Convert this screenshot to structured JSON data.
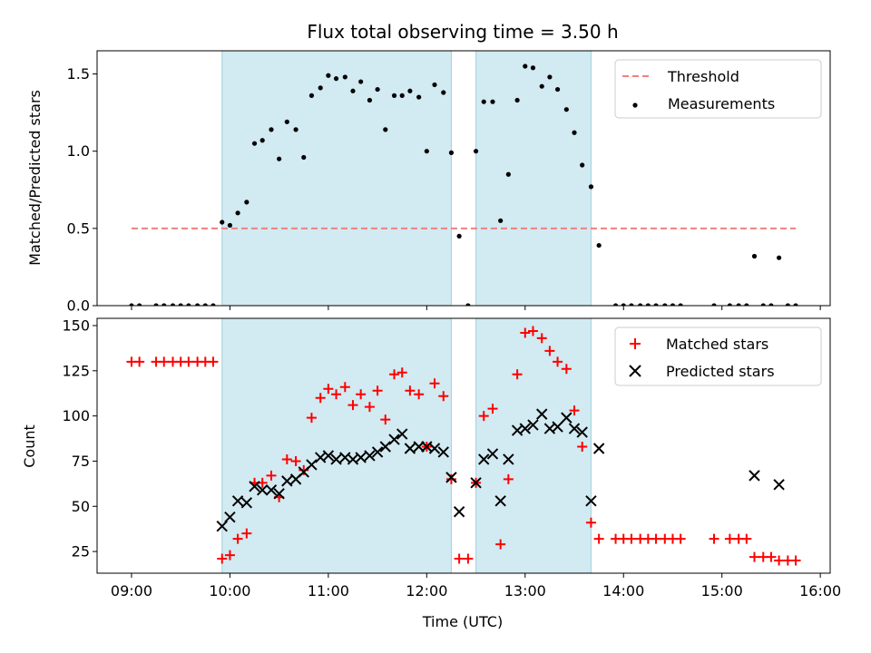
{
  "title": "Flux total observing time = 3.50 h",
  "colors": {
    "shade": "#add8e6",
    "threshold": "#f08080",
    "measurement": "#000000",
    "matched": "#ff0000",
    "predicted": "#000000"
  },
  "chart_data": [
    {
      "type": "scatter",
      "ylabel": "Matched/Predicted stars",
      "ylim": [
        0,
        1.65
      ],
      "yticks": [
        0,
        0.5,
        1.0,
        1.5
      ],
      "ytick_labels": [
        "0.0",
        "0.5",
        "1.0",
        "1.5"
      ],
      "xlim": [
        8.65,
        16.1
      ],
      "legend": {
        "placement": "top-right",
        "entries": [
          "Threshold",
          "Measurements"
        ]
      },
      "shaded_intervals": [
        [
          9.92,
          12.25
        ],
        [
          12.5,
          13.67
        ]
      ],
      "threshold": {
        "name": "Threshold",
        "value": 0.5,
        "x": [
          9.0,
          15.75
        ]
      },
      "series": [
        {
          "name": "Measurements",
          "x": [
            9.0,
            9.08,
            9.25,
            9.33,
            9.42,
            9.5,
            9.58,
            9.67,
            9.75,
            9.83,
            9.92,
            10.0,
            10.08,
            10.17,
            10.25,
            10.33,
            10.42,
            10.5,
            10.58,
            10.67,
            10.75,
            10.83,
            10.92,
            11.0,
            11.08,
            11.17,
            11.25,
            11.33,
            11.42,
            11.5,
            11.58,
            11.67,
            11.75,
            11.83,
            11.92,
            12.0,
            12.08,
            12.17,
            12.25,
            12.33,
            12.42,
            12.5,
            12.58,
            12.67,
            12.75,
            12.83,
            12.92,
            13.0,
            13.08,
            13.17,
            13.25,
            13.33,
            13.42,
            13.5,
            13.58,
            13.67,
            13.75,
            13.92,
            14.0,
            14.08,
            14.17,
            14.25,
            14.33,
            14.42,
            14.5,
            14.58,
            14.92,
            15.08,
            15.17,
            15.25,
            15.33,
            15.42,
            15.5,
            15.58,
            15.67,
            15.75
          ],
          "y": [
            0,
            0,
            0,
            0,
            0,
            0,
            0,
            0,
            0,
            0,
            0.54,
            0.52,
            0.6,
            0.67,
            1.05,
            1.07,
            1.14,
            0.95,
            1.19,
            1.14,
            0.96,
            1.36,
            1.41,
            1.49,
            1.47,
            1.48,
            1.39,
            1.45,
            1.33,
            1.4,
            1.14,
            1.36,
            1.36,
            1.39,
            1.35,
            1.0,
            1.43,
            1.38,
            0.99,
            0.45,
            0,
            1.0,
            1.32,
            1.32,
            0.55,
            0.85,
            1.33,
            1.55,
            1.54,
            1.42,
            1.48,
            1.4,
            1.27,
            1.12,
            0.91,
            0.77,
            0.39,
            0,
            0,
            0,
            0,
            0,
            0,
            0,
            0,
            0,
            0,
            0,
            0,
            0,
            0.32,
            0,
            0,
            0.31,
            0,
            0
          ]
        }
      ]
    },
    {
      "type": "scatter",
      "xlabel": "Time (UTC)",
      "ylabel": "Count",
      "ylim": [
        13,
        154
      ],
      "yticks": [
        25,
        50,
        75,
        100,
        125,
        150
      ],
      "ytick_labels": [
        "25",
        "50",
        "75",
        "100",
        "125",
        "150"
      ],
      "xlim": [
        8.65,
        16.1
      ],
      "xticks": [
        9,
        10,
        11,
        12,
        13,
        14,
        15,
        16
      ],
      "xtick_labels": [
        "09:00",
        "10:00",
        "11:00",
        "12:00",
        "13:00",
        "14:00",
        "15:00",
        "16:00"
      ],
      "legend": {
        "placement": "top-right",
        "entries": [
          "Matched stars",
          "Predicted stars"
        ]
      },
      "shaded_intervals": [
        [
          9.92,
          12.25
        ],
        [
          12.5,
          13.67
        ]
      ],
      "series": [
        {
          "name": "Matched stars",
          "marker": "plus",
          "x": [
            9.0,
            9.08,
            9.25,
            9.33,
            9.42,
            9.5,
            9.58,
            9.67,
            9.75,
            9.83,
            9.92,
            10.0,
            10.08,
            10.17,
            10.25,
            10.33,
            10.42,
            10.5,
            10.58,
            10.67,
            10.75,
            10.83,
            10.92,
            11.0,
            11.08,
            11.17,
            11.25,
            11.33,
            11.42,
            11.5,
            11.58,
            11.67,
            11.75,
            11.83,
            11.92,
            12.0,
            12.08,
            12.17,
            12.25,
            12.33,
            12.42,
            12.5,
            12.58,
            12.67,
            12.75,
            12.83,
            12.92,
            13.0,
            13.08,
            13.17,
            13.25,
            13.33,
            13.42,
            13.5,
            13.58,
            13.67,
            13.75,
            13.92,
            14.0,
            14.08,
            14.17,
            14.25,
            14.33,
            14.42,
            14.5,
            14.58,
            14.92,
            15.08,
            15.17,
            15.25,
            15.33,
            15.42,
            15.5,
            15.58,
            15.67,
            15.75
          ],
          "y": [
            130,
            130,
            130,
            130,
            130,
            130,
            130,
            130,
            130,
            130,
            21,
            23,
            32,
            35,
            63,
            63,
            67,
            55,
            76,
            75,
            70,
            99,
            110,
            115,
            112,
            116,
            106,
            112,
            105,
            114,
            98,
            123,
            124,
            114,
            112,
            83,
            118,
            111,
            65,
            21,
            21,
            63,
            100,
            104,
            29,
            65,
            123,
            146,
            147,
            143,
            136,
            130,
            126,
            103,
            83,
            41,
            32,
            32,
            32,
            32,
            32,
            32,
            32,
            32,
            32,
            32,
            32,
            32,
            32,
            32,
            22,
            22,
            22,
            20,
            20,
            20
          ]
        },
        {
          "name": "Predicted stars",
          "marker": "x",
          "x": [
            9.92,
            10.0,
            10.08,
            10.17,
            10.25,
            10.33,
            10.42,
            10.5,
            10.58,
            10.67,
            10.75,
            10.83,
            10.92,
            11.0,
            11.08,
            11.17,
            11.25,
            11.33,
            11.42,
            11.5,
            11.58,
            11.67,
            11.75,
            11.83,
            11.92,
            12.0,
            12.08,
            12.17,
            12.25,
            12.33,
            12.5,
            12.58,
            12.67,
            12.75,
            12.83,
            12.92,
            13.0,
            13.08,
            13.17,
            13.25,
            13.33,
            13.42,
            13.5,
            13.58,
            13.67,
            13.75,
            15.33,
            15.58
          ],
          "y": [
            39,
            44,
            53,
            52,
            61,
            59,
            59,
            57,
            64,
            65,
            69,
            73,
            77,
            78,
            76,
            77,
            76,
            77,
            78,
            80,
            83,
            87,
            90,
            82,
            83,
            83,
            82,
            80,
            66,
            47,
            63,
            76,
            79,
            53,
            76,
            92,
            93,
            95,
            101,
            93,
            94,
            99,
            93,
            91,
            53,
            82,
            67,
            62
          ]
        }
      ]
    }
  ]
}
